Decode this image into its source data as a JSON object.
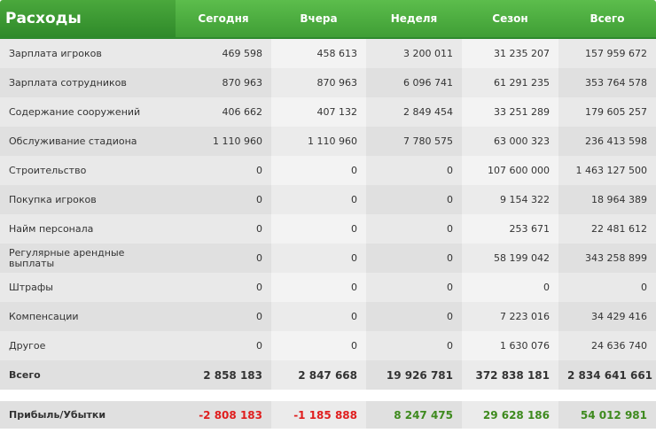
{
  "title": "Расходы",
  "columns": [
    "Сегодня",
    "Вчера",
    "Неделя",
    "Сезон",
    "Всего"
  ],
  "rows": [
    {
      "label": "Зарплата игроков",
      "values": [
        "469 598",
        "458 613",
        "3 200 011",
        "31 235 207",
        "157 959 672"
      ]
    },
    {
      "label": "Зарплата сотрудников",
      "values": [
        "870 963",
        "870 963",
        "6 096 741",
        "61 291 235",
        "353 764 578"
      ]
    },
    {
      "label": "Содержание сооружений",
      "values": [
        "406 662",
        "407 132",
        "2 849 454",
        "33 251 289",
        "179 605 257"
      ]
    },
    {
      "label": "Обслуживание стадиона",
      "values": [
        "1 110 960",
        "1 110 960",
        "7 780 575",
        "63 000 323",
        "236 413 598"
      ]
    },
    {
      "label": "Строительство",
      "values": [
        "0",
        "0",
        "0",
        "107 600 000",
        "1 463 127 500"
      ]
    },
    {
      "label": "Покупка игроков",
      "values": [
        "0",
        "0",
        "0",
        "9 154 322",
        "18 964 389"
      ]
    },
    {
      "label": "Найм персонала",
      "values": [
        "0",
        "0",
        "0",
        "253 671",
        "22 481 612"
      ]
    },
    {
      "label": "Регулярные арендные выплаты",
      "values": [
        "0",
        "0",
        "0",
        "58 199 042",
        "343 258 899"
      ]
    },
    {
      "label": "Штрафы",
      "values": [
        "0",
        "0",
        "0",
        "0",
        "0"
      ]
    },
    {
      "label": "Компенсации",
      "values": [
        "0",
        "0",
        "0",
        "7 223 016",
        "34 429 416"
      ]
    },
    {
      "label": "Другое",
      "values": [
        "0",
        "0",
        "0",
        "1 630 076",
        "24 636 740"
      ]
    }
  ],
  "total": {
    "label": "Всего",
    "values": [
      "2 858 183",
      "2 847 668",
      "19 926 781",
      "372 838 181",
      "2 834 641 661"
    ]
  },
  "profit": {
    "label": "Прибыль/Убытки",
    "values": [
      "-2 808 183",
      "-1 185 888",
      "8 247 475",
      "29 628 186",
      "54 012 981"
    ],
    "colors": {
      "negative": "#e01e1e",
      "positive": "#3e8a1e"
    }
  }
}
